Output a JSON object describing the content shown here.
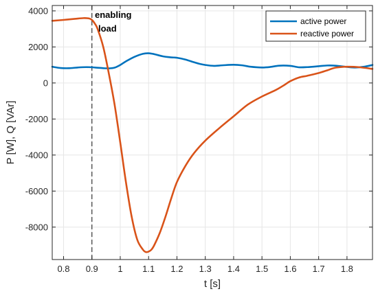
{
  "chart_data": {
    "type": "line",
    "xlabel": "t [s]",
    "ylabel": "P [W], Q [VAr]",
    "xlim": [
      0.76,
      1.89
    ],
    "ylim": [
      -9800,
      4300
    ],
    "x_ticks": [
      0.8,
      0.9,
      1,
      1.1,
      1.2,
      1.3,
      1.4,
      1.5,
      1.6,
      1.7,
      1.8
    ],
    "x_tick_labels": [
      "0.8",
      "0.9",
      "1",
      "1.1",
      "1.2",
      "1.3",
      "1.4",
      "1.5",
      "1.6",
      "1.7",
      "1.8"
    ],
    "y_ticks": [
      -8000,
      -6000,
      -4000,
      -2000,
      0,
      2000,
      4000
    ],
    "y_tick_labels": [
      "-8000",
      "-6000",
      "-4000",
      "-2000",
      "0",
      "2000",
      "4000"
    ],
    "grid": true,
    "legend_position": "top-right",
    "annotation": {
      "lines": [
        "enabling",
        "load"
      ],
      "x": 0.9
    },
    "series": [
      {
        "name": "active power",
        "color": "#0072BD",
        "x": [
          0.76,
          0.79,
          0.82,
          0.85,
          0.88,
          0.91,
          0.94,
          0.96,
          0.98,
          1.0,
          1.02,
          1.05,
          1.08,
          1.1,
          1.12,
          1.15,
          1.18,
          1.2,
          1.23,
          1.26,
          1.28,
          1.3,
          1.33,
          1.36,
          1.4,
          1.43,
          1.46,
          1.5,
          1.53,
          1.56,
          1.6,
          1.63,
          1.66,
          1.7,
          1.73,
          1.76,
          1.8,
          1.83,
          1.86,
          1.89
        ],
        "y": [
          900,
          830,
          820,
          860,
          880,
          860,
          820,
          810,
          850,
          1000,
          1200,
          1450,
          1620,
          1650,
          1600,
          1480,
          1420,
          1400,
          1300,
          1150,
          1060,
          1000,
          950,
          980,
          1010,
          980,
          900,
          860,
          890,
          960,
          950,
          870,
          880,
          930,
          970,
          960,
          890,
          860,
          900,
          1000
        ]
      },
      {
        "name": "reactive power",
        "color": "#D95319",
        "x": [
          0.76,
          0.8,
          0.84,
          0.87,
          0.89,
          0.9,
          0.91,
          0.92,
          0.94,
          0.96,
          0.98,
          1.0,
          1.02,
          1.04,
          1.06,
          1.08,
          1.09,
          1.1,
          1.11,
          1.12,
          1.14,
          1.16,
          1.18,
          1.2,
          1.23,
          1.26,
          1.3,
          1.35,
          1.4,
          1.45,
          1.5,
          1.55,
          1.58,
          1.6,
          1.63,
          1.66,
          1.7,
          1.73,
          1.76,
          1.8,
          1.84,
          1.89
        ],
        "y": [
          3450,
          3500,
          3560,
          3600,
          3580,
          3500,
          3300,
          3000,
          2000,
          500,
          -1200,
          -3300,
          -5500,
          -7400,
          -8700,
          -9250,
          -9380,
          -9360,
          -9250,
          -9000,
          -8300,
          -7400,
          -6400,
          -5500,
          -4600,
          -3900,
          -3200,
          -2500,
          -1850,
          -1200,
          -750,
          -380,
          -100,
          100,
          300,
          400,
          550,
          700,
          850,
          900,
          880,
          780
        ]
      }
    ]
  }
}
